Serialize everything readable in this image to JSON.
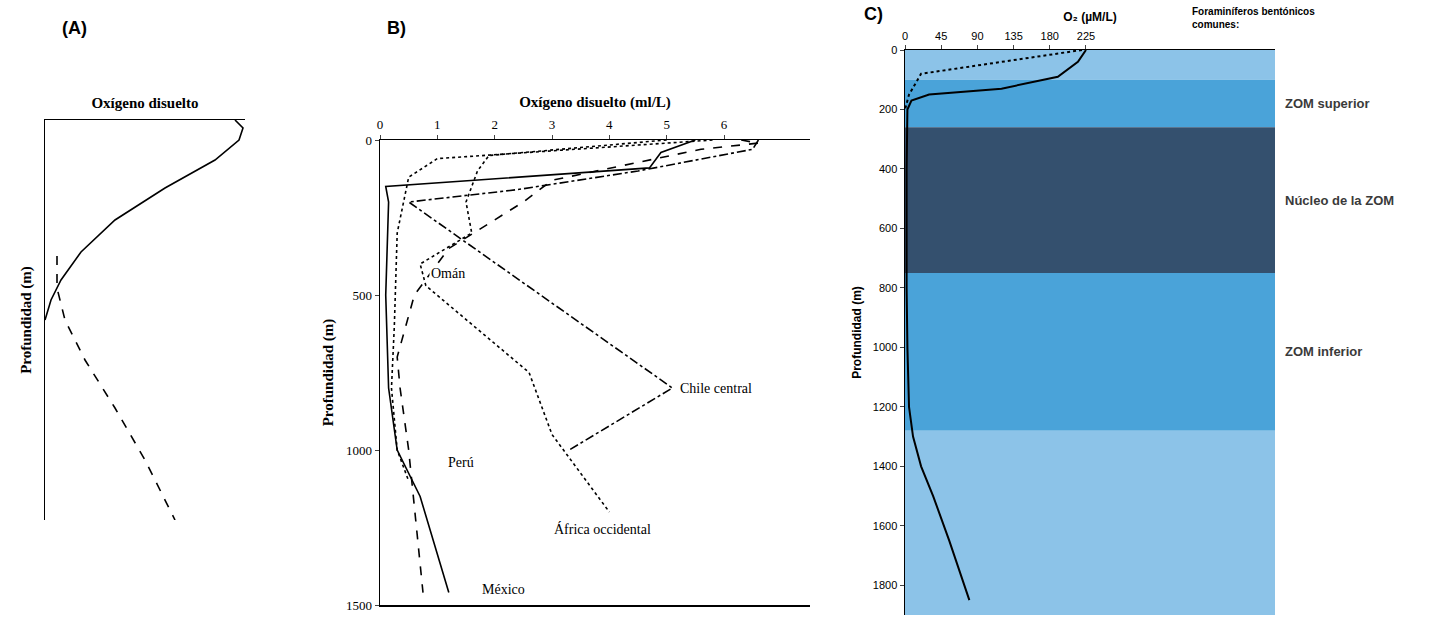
{
  "chart_data": [
    {
      "type": "line",
      "panel": "(A)",
      "x_label": "Oxígeno disuelto",
      "y_label": "Profundidad (m)",
      "tick_labels": false,
      "grid": false,
      "xlim": [
        0,
        1
      ],
      "ylim": [
        1,
        0
      ],
      "xticks": [],
      "yticks": [],
      "series": [
        {
          "color": "#000000",
          "line_style": "solid",
          "x": [
            0.95,
            0.99,
            0.97,
            0.85,
            0.6,
            0.35,
            0.18,
            0.08,
            0.03,
            0.0
          ],
          "y": [
            0,
            0.02,
            0.05,
            0.1,
            0.17,
            0.25,
            0.33,
            0.4,
            0.45,
            0.5
          ]
        },
        {
          "color": "#000000",
          "line_style": "dashed",
          "x": [
            0.06,
            0.06,
            0.1,
            0.2,
            0.35,
            0.5,
            0.65
          ],
          "y": [
            0.34,
            0.42,
            0.5,
            0.6,
            0.72,
            0.85,
            1.0
          ]
        }
      ]
    },
    {
      "type": "line",
      "panel": "B)",
      "x_label": "Oxígeno disuelto (ml/L)",
      "y_label": "Profundidad (m)",
      "grid": false,
      "xlim": [
        0,
        7.5
      ],
      "ylim": [
        1500,
        0
      ],
      "xticks": [
        0,
        1,
        2,
        3,
        4,
        5,
        6
      ],
      "yticks": [
        0,
        500,
        1000,
        1500
      ],
      "series": [
        {
          "name": "México",
          "color": "#000000",
          "line_style": "solid",
          "x": [
            5.5,
            4.9,
            4.7,
            0.1,
            0.15,
            0.1,
            0.15,
            0.3,
            0.7,
            1.2
          ],
          "y": [
            0,
            40,
            90,
            150,
            200,
            500,
            800,
            1000,
            1150,
            1460
          ]
        },
        {
          "name": "Perú",
          "color": "#000000",
          "line_style": "dashed",
          "x": [
            6.3,
            6.6,
            5.6,
            3.0,
            2.5,
            1.2,
            0.6,
            0.3,
            0.35,
            0.5,
            0.75
          ],
          "y": [
            0,
            10,
            30,
            130,
            200,
            350,
            500,
            700,
            800,
            1000,
            1460
          ]
        },
        {
          "name": "Omán",
          "color": "#000000",
          "line_style": "dotted",
          "x": [
            5.8,
            1.0,
            0.5,
            0.3,
            0.25,
            0.2,
            0.3,
            0.5
          ],
          "y": [
            0,
            60,
            120,
            300,
            600,
            800,
            1000,
            1100
          ]
        },
        {
          "name": "Chile central",
          "color": "#000000",
          "line_style": "dashdot",
          "x": [
            6.6,
            6.5,
            4.5,
            2.4,
            0.5,
            5.1,
            3.3
          ],
          "y": [
            0,
            30,
            100,
            160,
            200,
            800,
            1000
          ]
        },
        {
          "name": "África occidental",
          "color": "#000000",
          "line_style": "dotted",
          "x": [
            5.0,
            1.9,
            1.7,
            1.5,
            1.6,
            0.7,
            0.8,
            2.6,
            3.0,
            4.0
          ],
          "y": [
            0,
            50,
            100,
            200,
            300,
            400,
            470,
            750,
            950,
            1200
          ]
        }
      ],
      "annotations": [
        {
          "text": "Omán",
          "x": 0.85,
          "y": 430
        },
        {
          "text": "Perú",
          "x": 1.15,
          "y": 1040
        },
        {
          "text": "México",
          "x": 1.75,
          "y": 1450
        },
        {
          "text": "Chile central",
          "x": 5.2,
          "y": 800
        },
        {
          "text": "África occidental",
          "x": 3.0,
          "y": 1255
        }
      ]
    },
    {
      "type": "line",
      "panel": "C)",
      "x_label": "O₂ (µM/L)",
      "y_label": "Profundidad (m)",
      "grid": false,
      "xlim": [
        0,
        460
      ],
      "ylim": [
        1900,
        0
      ],
      "xticks": [
        0,
        45,
        90,
        135,
        180,
        225
      ],
      "yticks": [
        0,
        200,
        400,
        600,
        800,
        1000,
        1200,
        1400,
        1600,
        1800
      ],
      "note": "Foraminíferos bentónicos comunes:",
      "zones": [
        {
          "from": 0,
          "to": 100,
          "color": "#8cc3e8"
        },
        {
          "name": "ZOM superior",
          "from": 100,
          "to": 260,
          "color": "#4aa3d9"
        },
        {
          "name": "Núcleo de la ZOM",
          "from": 260,
          "to": 750,
          "color": "#34506e"
        },
        {
          "name": "ZOM inferior",
          "from": 750,
          "to": 1280,
          "color": "#4aa3d9"
        },
        {
          "from": 1280,
          "to": 1900,
          "color": "#8cc3e8"
        }
      ],
      "series": [
        {
          "color": "#000000",
          "line_style": "solid",
          "x": [
            225,
            215,
            190,
            120,
            30,
            8,
            3,
            2,
            2,
            3,
            5,
            10,
            20,
            35,
            55,
            80
          ],
          "y": [
            0,
            40,
            90,
            130,
            150,
            170,
            200,
            400,
            800,
            1000,
            1200,
            1300,
            1400,
            1500,
            1650,
            1850
          ]
        },
        {
          "color": "#000000",
          "line_style": "dotted",
          "x": [
            220,
            120,
            20,
            5,
            0
          ],
          "y": [
            0,
            40,
            80,
            150,
            200
          ]
        }
      ]
    }
  ]
}
